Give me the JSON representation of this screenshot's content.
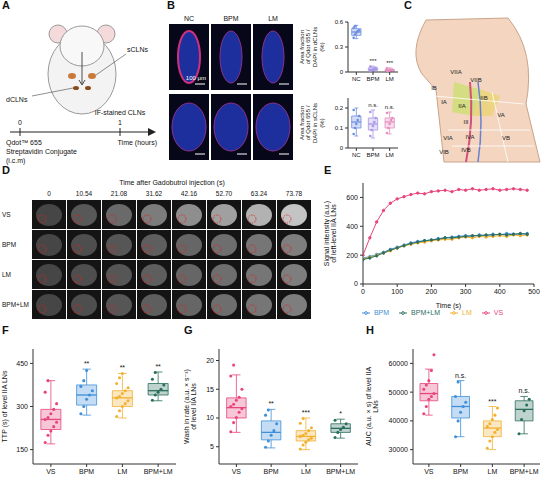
{
  "panel_A": {
    "letter": "A",
    "sCLN_label": "sCLNs",
    "dCLN_label": "dCLNs",
    "tracer": [
      "Qdot™ 655",
      "Streptavidin Conjugate",
      "(i.c.m)"
    ],
    "readout": "IF-stained CLNs",
    "time_ticks": [
      0,
      1
    ],
    "time_label": "Time (hours)"
  },
  "panel_B": {
    "letter": "B",
    "columns": [
      "NC",
      "BPM",
      "LM"
    ],
    "scale_bar": "100 μm"
  },
  "panel_C": {
    "letter": "C",
    "levels": [
      "IA",
      "IB",
      "IIA",
      "IIB",
      "III",
      "IVA",
      "IVB",
      "VA",
      "VB",
      "VIA",
      "VIB",
      "VIIA",
      "VIIB"
    ]
  },
  "panel_D": {
    "letter": "D",
    "title": "Time after Gadobutrol injection (s)",
    "times": [
      0,
      10.54,
      21.08,
      31.62,
      42.16,
      {
        "value": 52.7,
        "label": "52.70"
      },
      63.24,
      73.78
    ],
    "rows": [
      "VS",
      "BPM",
      "LM",
      "BPM+LM"
    ]
  },
  "chart_data": [
    {
      "type": "box",
      "y_label": "Area fraction of Qdot 655 / DAPI in dCLNs (%)",
      "categories": [
        "NC",
        "BPM",
        "LM"
      ],
      "colors": [
        "#6f8fe0",
        "#a996e6",
        "#e58fbf"
      ],
      "ylim": [
        0,
        0.6
      ],
      "yticks": [
        0,
        0.3,
        0.6
      ],
      "boxes": [
        {
          "low": 0.4,
          "q1": 0.44,
          "median": 0.48,
          "q3": 0.52,
          "high": 0.56
        },
        {
          "low": 0.01,
          "q1": 0.02,
          "median": 0.03,
          "q3": 0.05,
          "high": 0.07
        },
        {
          "low": 0.005,
          "q1": 0.01,
          "median": 0.02,
          "q3": 0.03,
          "high": 0.05
        }
      ],
      "points": [
        [
          0.41,
          0.45,
          0.47,
          0.49,
          0.5,
          0.53,
          0.55
        ],
        [
          0.012,
          0.02,
          0.03,
          0.035,
          0.05,
          0.065
        ],
        [
          0.006,
          0.012,
          0.02,
          0.025,
          0.03,
          0.045
        ]
      ],
      "annotations": [
        null,
        "***",
        "***"
      ]
    },
    {
      "type": "box",
      "y_label": "Area fraction of Qdot 655 / DAPI in sCLNs (%)",
      "categories": [
        "NC",
        "BPM",
        "LM"
      ],
      "colors": [
        "#6f8fe0",
        "#a996e6",
        "#e58fbf"
      ],
      "ylim": [
        0,
        0.25
      ],
      "yticks": [
        0,
        0.1,
        0.2
      ],
      "boxes": [
        {
          "low": 0.06,
          "q1": 0.1,
          "median": 0.13,
          "q3": 0.16,
          "high": 0.2
        },
        {
          "low": 0.05,
          "q1": 0.09,
          "median": 0.12,
          "q3": 0.15,
          "high": 0.19
        },
        {
          "low": 0.07,
          "q1": 0.1,
          "median": 0.13,
          "q3": 0.15,
          "high": 0.18
        }
      ],
      "points": [
        [
          0.07,
          0.1,
          0.12,
          0.14,
          0.16,
          0.19
        ],
        [
          0.06,
          0.09,
          0.11,
          0.13,
          0.15,
          0.18
        ],
        [
          0.075,
          0.1,
          0.12,
          0.14,
          0.15,
          0.175
        ]
      ],
      "annotations": [
        null,
        "n.s.",
        "n.s."
      ]
    },
    {
      "type": "line",
      "panel": "E",
      "y_label": "Signal intensity (a.u.) of left-level IIA LNs",
      "x_label": "Time (s)",
      "xlim": [
        0,
        500
      ],
      "xticks": [
        0,
        100,
        200,
        300,
        400,
        500
      ],
      "ylim": [
        0,
        700
      ],
      "yticks": [
        0,
        200,
        400,
        600
      ],
      "legend": "bottom",
      "marker": "circle",
      "x": [
        0,
        20,
        40,
        60,
        80,
        100,
        120,
        140,
        160,
        180,
        200,
        220,
        240,
        260,
        280,
        300,
        320,
        340,
        360,
        380,
        400,
        420,
        440,
        460,
        480
      ],
      "series": [
        {
          "name": "VS",
          "color": "#e8457c",
          "values": [
            200,
            320,
            430,
            510,
            560,
            590,
            605,
            620,
            630,
            625,
            640,
            645,
            650,
            640,
            655,
            650,
            660,
            650,
            655,
            660,
            650,
            655,
            660,
            655,
            650
          ]
        },
        {
          "name": "BPM",
          "color": "#3f8fd9",
          "values": [
            180,
            190,
            205,
            220,
            240,
            255,
            270,
            285,
            295,
            300,
            305,
            315,
            320,
            325,
            330,
            335,
            330,
            340,
            335,
            345,
            340,
            350,
            345,
            345,
            350
          ]
        },
        {
          "name": "LM",
          "color": "#f2b131",
          "values": [
            175,
            185,
            200,
            215,
            230,
            250,
            265,
            275,
            285,
            290,
            300,
            305,
            310,
            310,
            320,
            325,
            320,
            330,
            325,
            330,
            335,
            330,
            340,
            335,
            340
          ]
        },
        {
          "name": "BPM+LM",
          "color": "#2b6e5c",
          "values": [
            170,
            180,
            195,
            215,
            235,
            250,
            265,
            280,
            290,
            300,
            305,
            310,
            320,
            320,
            325,
            330,
            335,
            335,
            340,
            340,
            345,
            340,
            345,
            350,
            345
          ]
        }
      ]
    },
    {
      "type": "box",
      "panel": "F",
      "y_label": "TTP (s) of level IIA LNs",
      "categories": [
        "VS",
        "BPM",
        "LM",
        "BPM+LM"
      ],
      "colors": [
        "#e8457c",
        "#3f8fd9",
        "#f2b131",
        "#2b6e5c"
      ],
      "ylim": [
        100,
        500
      ],
      "yticks": [
        150,
        300,
        450
      ],
      "boxes": [
        {
          "low": 170,
          "q1": 220,
          "median": 255,
          "q3": 290,
          "high": 390
        },
        {
          "low": 270,
          "q1": 305,
          "median": 340,
          "q3": 375,
          "high": 430
        },
        {
          "low": 260,
          "q1": 300,
          "median": 330,
          "q3": 355,
          "high": 415
        },
        {
          "low": 320,
          "q1": 340,
          "median": 355,
          "q3": 380,
          "high": 420
        }
      ],
      "points": [
        [
          175,
          200,
          215,
          230,
          245,
          255,
          262,
          275,
          290,
          310,
          350,
          390
        ],
        [
          275,
          300,
          325,
          340,
          355,
          370,
          390,
          425
        ],
        [
          265,
          285,
          300,
          310,
          320,
          330,
          335,
          345,
          355,
          365,
          380,
          400,
          415
        ],
        [
          322,
          340,
          350,
          360,
          375,
          395,
          418
        ]
      ],
      "annotations": [
        null,
        "**",
        "**",
        "**"
      ]
    },
    {
      "type": "box",
      "panel": "G",
      "y_label": "Wash in rate (a.u. × s⁻¹) of level IIA LNs",
      "categories": [
        "VS",
        "BPM",
        "LM",
        "BPM+LM"
      ],
      "colors": [
        "#e8457c",
        "#3f8fd9",
        "#f2b131",
        "#2b6e5c"
      ],
      "ylim": [
        2,
        22
      ],
      "yticks": [
        5,
        10,
        15,
        20
      ],
      "boxes": [
        {
          "low": 7.5,
          "q1": 10,
          "median": 11.8,
          "q3": 13.5,
          "high": 17.5
        },
        {
          "low": 4.8,
          "q1": 6.2,
          "median": 7.5,
          "q3": 9.5,
          "high": 11.5
        },
        {
          "low": 4.5,
          "q1": 6,
          "median": 6.8,
          "q3": 7.8,
          "high": 10
        },
        {
          "low": 6.5,
          "q1": 7.5,
          "median": 8.2,
          "q3": 9,
          "high": 9.8
        }
      ],
      "points": [
        [
          7.6,
          9.2,
          10.1,
          11,
          11.6,
          12,
          12.4,
          13.1,
          13.6,
          15,
          17.3,
          19.2
        ],
        [
          4.9,
          6,
          7,
          7.8,
          9,
          10.5,
          11.4
        ],
        [
          4.6,
          5.3,
          5.8,
          6.2,
          6.5,
          6.8,
          7,
          7.3,
          7.8,
          8.3,
          9.1,
          9.9
        ],
        [
          6.6,
          7.5,
          8,
          8.4,
          9,
          9.6
        ]
      ],
      "annotations": [
        null,
        "**",
        "***",
        "*"
      ]
    },
    {
      "type": "box",
      "panel": "H",
      "y_label": "AUC (a.u. × s) of level IIA LNs",
      "categories": [
        "VS",
        "BPM",
        "LM",
        "BPM+LM"
      ],
      "colors": [
        "#e8457c",
        "#3f8fd9",
        "#f2b131",
        "#2b6e5c"
      ],
      "ylim": [
        25000,
        65000
      ],
      "yticks": [
        30000,
        40000,
        50000,
        60000
      ],
      "boxes": [
        {
          "low": 42000,
          "q1": 47000,
          "median": 49500,
          "q3": 53000,
          "high": 58000
        },
        {
          "low": 34500,
          "q1": 41000,
          "median": 45000,
          "q3": 48500,
          "high": 54000
        },
        {
          "low": 30000,
          "q1": 34500,
          "median": 37500,
          "q3": 40000,
          "high": 45000
        },
        {
          "low": 35500,
          "q1": 40000,
          "median": 44000,
          "q3": 47000,
          "high": 48500
        }
      ],
      "points": [
        [
          42500,
          45000,
          47500,
          48500,
          49500,
          51000,
          52500,
          54000,
          57500,
          63000
        ],
        [
          34500,
          40000,
          43000,
          45000,
          46500,
          48500,
          53500
        ],
        [
          30500,
          33000,
          34500,
          36000,
          37000,
          38000,
          39000,
          40500,
          42000,
          44500
        ],
        [
          35500,
          40500,
          43500,
          45500,
          47500
        ]
      ],
      "annotations": [
        null,
        "n.s.",
        "***",
        "n.s."
      ]
    }
  ]
}
